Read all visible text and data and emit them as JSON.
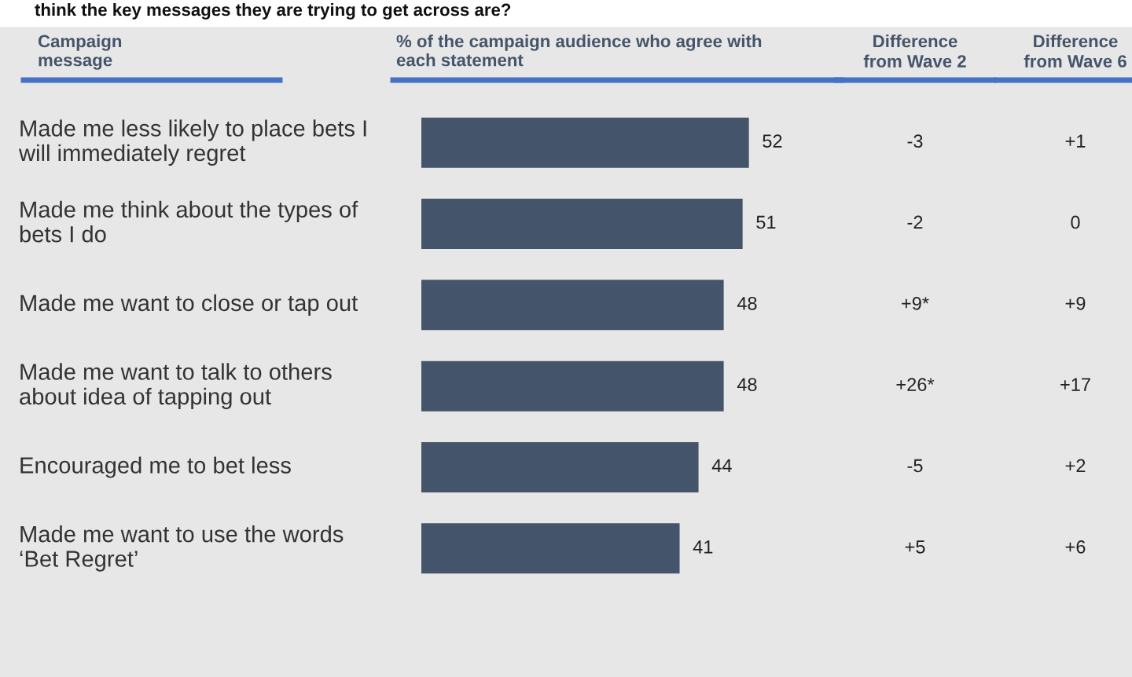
{
  "chart_data": {
    "type": "bar",
    "orientation": "horizontal",
    "data_labels": true,
    "title": "think the key messages they are trying to get across are?",
    "ylabel": "Campaign\nmessage",
    "xlabel": "% of the campaign audience who agree with\neach statement",
    "categories": [
      "Made me less likely to place bets I\nwill immediately regret",
      "Made me think about the types of\nbets I do",
      "Made me want to close or tap out",
      "Made me want to talk to others\nabout idea of tapping out",
      "Encouraged me to bet less",
      "Made me want to use the words\n‘Bet Regret’"
    ],
    "values": [
      52,
      51,
      48,
      48,
      44,
      41
    ],
    "color": "#44546a",
    "annotations": [
      "Difference\nfrom Wave 2",
      "Difference\nfrom Wave 6",
      "-3",
      "+1",
      "-2",
      "0",
      "+9*",
      "+9",
      "+26*",
      "+17",
      "-5",
      "+2",
      "+5",
      "+6"
    ]
  }
}
